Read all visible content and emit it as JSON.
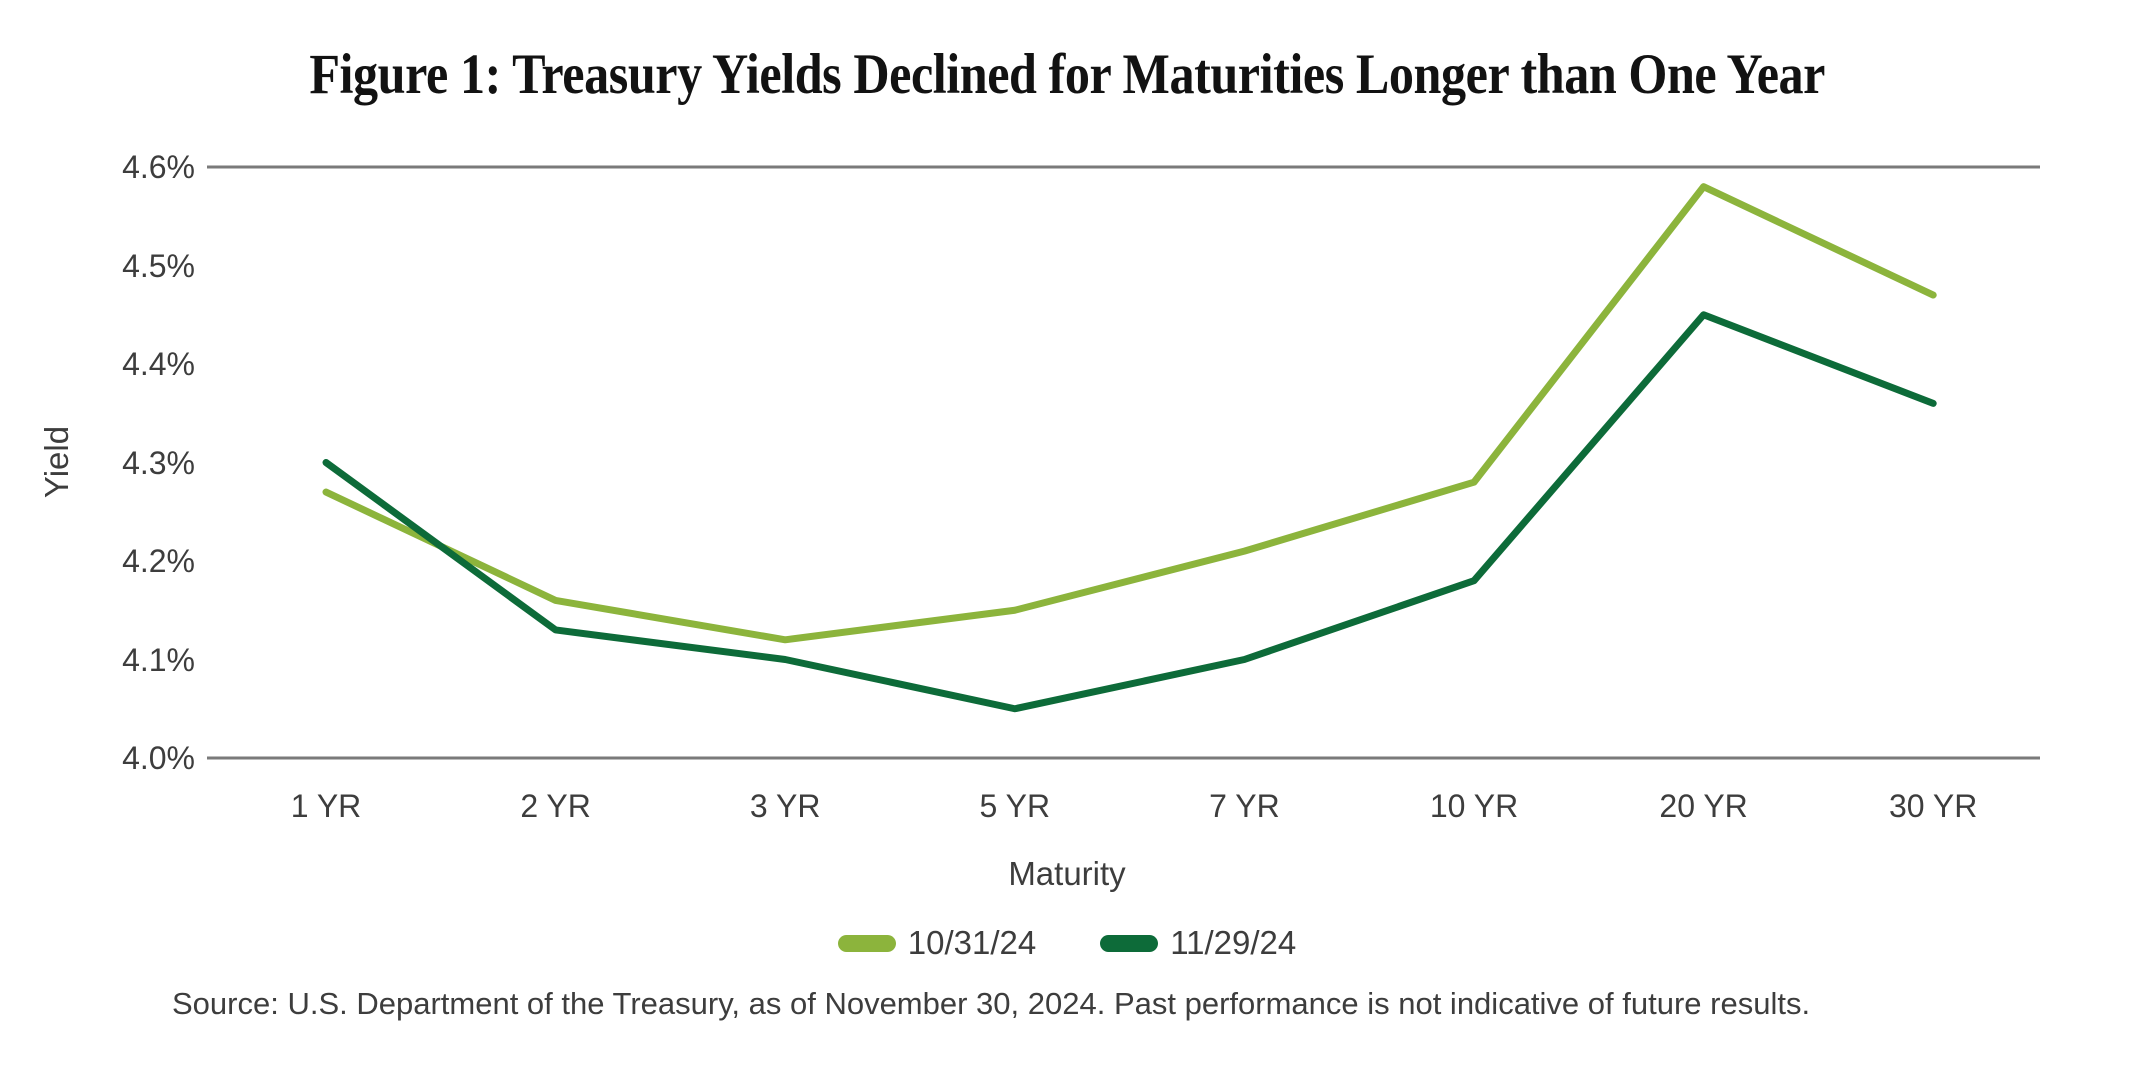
{
  "title": "Figure 1: Treasury Yields Declined for Maturities Longer than One Year",
  "y_axis": {
    "label": "Yield",
    "ticks": [
      "4.6%",
      "4.5%",
      "4.4%",
      "4.3%",
      "4.2%",
      "4.1%",
      "4.0%"
    ]
  },
  "x_axis": {
    "label": "Maturity",
    "categories": [
      "1 YR",
      "2 YR",
      "3 YR",
      "5 YR",
      "7 YR",
      "10 YR",
      "20 YR",
      "30 YR"
    ]
  },
  "legend": {
    "items": [
      {
        "label": "10/31/24",
        "color": "#8CB43C"
      },
      {
        "label": "11/29/24",
        "color": "#0D6B39"
      }
    ]
  },
  "source": "Source: U.S. Department of the Treasury, as of November 30, 2024. Past performance is not indicative of future results.",
  "colors": {
    "axis_line": "#7a7a7a",
    "tick_text": "#3d3d3d",
    "title_text": "#121212",
    "series_light_green": "#8CB43C",
    "series_dark_green": "#0D6B39"
  },
  "chart_data": {
    "type": "line",
    "categories": [
      "1 YR",
      "2 YR",
      "3 YR",
      "5 YR",
      "7 YR",
      "10 YR",
      "20 YR",
      "30 YR"
    ],
    "series": [
      {
        "name": "10/31/24",
        "color": "#8CB43C",
        "values": [
          4.27,
          4.16,
          4.12,
          4.15,
          4.21,
          4.28,
          4.58,
          4.47
        ]
      },
      {
        "name": "11/29/24",
        "color": "#0D6B39",
        "values": [
          4.3,
          4.13,
          4.1,
          4.05,
          4.1,
          4.18,
          4.45,
          4.36
        ]
      }
    ],
    "title": "Figure 1: Treasury Yields Declined for Maturities Longer than One Year",
    "xlabel": "Maturity",
    "ylabel": "Yield",
    "ylim": [
      4.0,
      4.6
    ],
    "ytick_step": 0.1,
    "ytick_format": "percent_one_decimal",
    "grid": "only top (4.6%) rule and bottom (4.0%) axis line, no intermediate gridlines",
    "legend_position": "bottom-center"
  }
}
